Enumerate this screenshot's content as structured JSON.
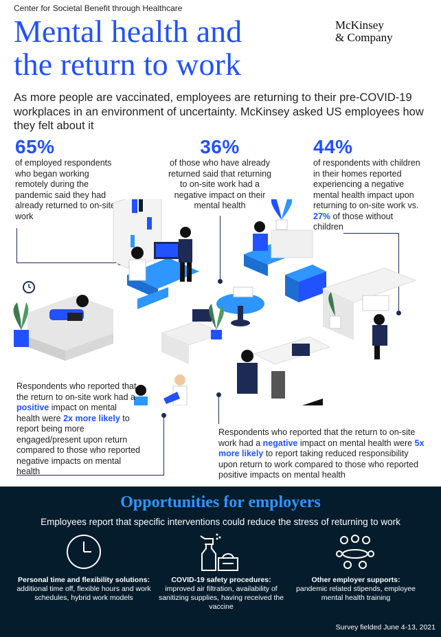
{
  "header": {
    "kicker": "Center for Societal Benefit through Healthcare",
    "title_line1": "Mental health and",
    "title_line2": "the return to work",
    "logo_line1": "McKinsey",
    "logo_line2": "& Company"
  },
  "intro": "As more people are vaccinated, employees are returning to their pre-COVID-19 workplaces in an environment of uncertainty. McKinsey asked US employees how they felt about it",
  "stats": [
    {
      "value": "65%",
      "text": "of employed respondents who began working remotely during the pandemic said they had already returned to on-site work"
    },
    {
      "value": "36%",
      "text": "of those who have already returned said that returning to on-site work had a negative impact on their mental health"
    },
    {
      "value": "44%",
      "text_before": "of respondents with children in their homes reported experiencing a negative mental health impact upon returning to on-site work vs.",
      "highlight": "27%",
      "text_after": "of those without children"
    }
  ],
  "callout_left": {
    "part1": "Respondents who reported that the return to on-site work had a",
    "emph1": "positive",
    "part2": "impact on mental health were",
    "emph2": "2x more likely",
    "part3": "to report being more engaged/present upon return compared to those who reported negative impacts on mental health"
  },
  "callout_right": {
    "part1": "Respondents who reported that the return to on-site work had a",
    "emph1": "negative",
    "part2": "impact on mental health were",
    "emph2": "5x more likely",
    "part3": "to report taking reduced responsibility upon return to work compared to those who reported positive impacts on mental health"
  },
  "opportunities": {
    "title": "Opportunities for employers",
    "subtitle": "Employees report that specific interventions could reduce the stress of returning to work",
    "items": [
      {
        "icon": "clock-icon",
        "heading": "Personal time and flexibility solutions:",
        "text": "additional time off, flexible hours and work schedules, hybrid work models"
      },
      {
        "icon": "spray-bottle-icon",
        "heading": "COVID-19 safety procedures:",
        "text": "improved air filtration, availability of sanitizing supplies, having received the vaccine"
      },
      {
        "icon": "people-meeting-icon",
        "heading": "Other employer supports:",
        "text": "pandemic related stipends, employee mental health training"
      }
    ],
    "footnote": "Survey fielded June 4-13, 2021"
  },
  "colors": {
    "accent": "#2251ff",
    "navy": "#051c2c",
    "light_blue": "#2e96ff"
  }
}
